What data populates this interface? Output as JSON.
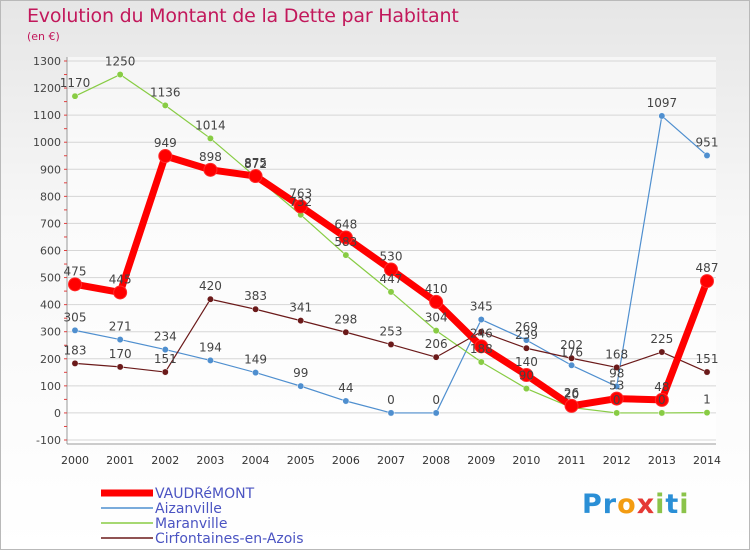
{
  "title": "Evolution du Montant de la Dette par Habitant",
  "unit_label": "(en €)",
  "logo_text": "Proxiti",
  "chart_data": {
    "type": "line",
    "title": "Evolution du Montant de la Dette par Habitant",
    "ylabel": "(en €)",
    "xlabel": "",
    "ylim": [
      -100,
      1300
    ],
    "yticks": [
      -100,
      0,
      100,
      200,
      300,
      400,
      500,
      600,
      700,
      800,
      900,
      1000,
      1100,
      1200,
      1300
    ],
    "x": [
      "2000",
      "2001",
      "2002",
      "2003",
      "2004",
      "2005",
      "2006",
      "2007",
      "2008",
      "2009",
      "2010",
      "2011",
      "2012",
      "2013",
      "2014"
    ],
    "grid": "horizontal",
    "legend": "bottom-left",
    "series": [
      {
        "name": "VAUDRéMONT",
        "color": "#ff0000",
        "values": [
          475,
          445,
          949,
          898,
          875,
          763,
          648,
          530,
          410,
          246,
          140,
          26,
          53,
          48,
          487
        ],
        "labels": [
          "475",
          "445",
          "949",
          "898",
          "875",
          "763",
          "648",
          "530",
          "410",
          "246",
          "140",
          "26",
          "53",
          "48",
          "487"
        ]
      },
      {
        "name": "Aizanville",
        "color": "#4f8fcf",
        "values": [
          305,
          271,
          234,
          194,
          149,
          99,
          44,
          0,
          0,
          345,
          269,
          176,
          98,
          1097,
          951
        ],
        "labels": [
          "305",
          "271",
          "234",
          "194",
          "149",
          "99",
          "44",
          "0",
          "0",
          "345",
          "269",
          "176",
          "98",
          "1097",
          "951"
        ]
      },
      {
        "name": "Maranville",
        "color": "#88cc44",
        "values": [
          1170,
          1250,
          1136,
          1014,
          872,
          732,
          583,
          447,
          304,
          188,
          90,
          20,
          0,
          0,
          1
        ],
        "labels": [
          "1170",
          "1250",
          "1136",
          "1014",
          "872",
          "732",
          "583",
          "447",
          "304",
          "188",
          "90",
          "20",
          "0",
          "0",
          "1"
        ]
      },
      {
        "name": "Cirfontaines-en-Azois",
        "color": "#6b1a1a",
        "values": [
          183,
          170,
          151,
          420,
          383,
          341,
          298,
          253,
          206,
          300,
          239,
          202,
          168,
          225,
          151
        ],
        "labels": [
          "183",
          "170",
          "151",
          "420",
          "383",
          "341",
          "298",
          "253",
          "206",
          "",
          "239",
          "202",
          "168",
          "225",
          "151"
        ]
      }
    ]
  }
}
